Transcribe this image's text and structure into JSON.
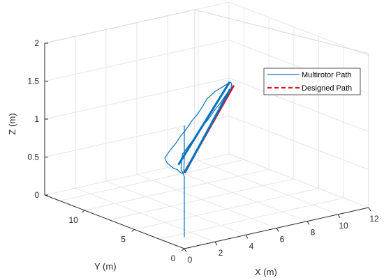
{
  "chart_data": {
    "type": "line",
    "projection": "3d",
    "xlabel": "X (m)",
    "ylabel": "Y (m)",
    "zlabel": "Z (m)",
    "xlim": [
      0,
      12
    ],
    "ylim": [
      0,
      14
    ],
    "zlim": [
      0,
      2
    ],
    "xticks": [
      "0",
      "2",
      "4",
      "6",
      "8",
      "10",
      "12"
    ],
    "yticks": [
      "0",
      "5",
      "10"
    ],
    "zticks": [
      "0",
      "0.5",
      "1",
      "1.5",
      "2"
    ],
    "grid": true,
    "legend_position": "top-right",
    "series": [
      {
        "name": "Multirotor Path",
        "style": "solid",
        "color": "#0072BD",
        "x": [
          0.0,
          0.0,
          0.0,
          0.0,
          0.0,
          0.0,
          0.0,
          0.3,
          0.8,
          1.5,
          2.5,
          3.5,
          4.5,
          5.5,
          6.5,
          7.5,
          8.5,
          9.5,
          10.5,
          11.0,
          11.2,
          11.0,
          10.0,
          9.0,
          8.0,
          7.0,
          6.0,
          5.0,
          4.0,
          3.0,
          2.0,
          1.0,
          0.5,
          0.3,
          0.2,
          0.1,
          0.0,
          0.0,
          0.0,
          0.0,
          0.0,
          0.0,
          0.0,
          0.0
        ],
        "y": [
          0.0,
          0.0,
          0.0,
          0.0,
          0.0,
          0.0,
          0.0,
          0.8,
          1.5,
          2.5,
          3.5,
          4.5,
          5.5,
          6.5,
          7.5,
          8.5,
          9.5,
          10.5,
          11.5,
          12.2,
          12.6,
          12.6,
          12.3,
          11.6,
          10.5,
          9.5,
          8.5,
          7.5,
          6.5,
          5.5,
          4.5,
          3.5,
          2.5,
          1.6,
          1.0,
          0.5,
          0.2,
          0.05,
          0.0,
          0.0,
          0.0,
          0.0,
          0.0,
          0.0
        ],
        "z": [
          0.15,
          0.4,
          0.7,
          0.8,
          0.85,
          0.9,
          0.95,
          1.0,
          1.05,
          1.05,
          1.05,
          1.05,
          1.05,
          1.06,
          1.05,
          1.06,
          1.05,
          1.06,
          1.05,
          1.06,
          1.05,
          1.04,
          1.0,
          0.98,
          0.98,
          0.97,
          0.98,
          0.97,
          0.98,
          0.97,
          0.98,
          0.97,
          0.98,
          0.97,
          0.98,
          0.97,
          0.98,
          1.0,
          1.2,
          1.55,
          1.58,
          1.6,
          1.6,
          1.62
        ]
      },
      {
        "name": "Designed Path",
        "style": "dashed",
        "color": "#D9121F",
        "x": [
          0.0,
          11.4,
          11.4,
          0.0,
          0.0
        ],
        "y": [
          0.0,
          12.6,
          12.6,
          0.0,
          0.0
        ],
        "z": [
          1.0,
          1.0,
          1.0,
          1.0,
          1.0
        ]
      }
    ]
  }
}
